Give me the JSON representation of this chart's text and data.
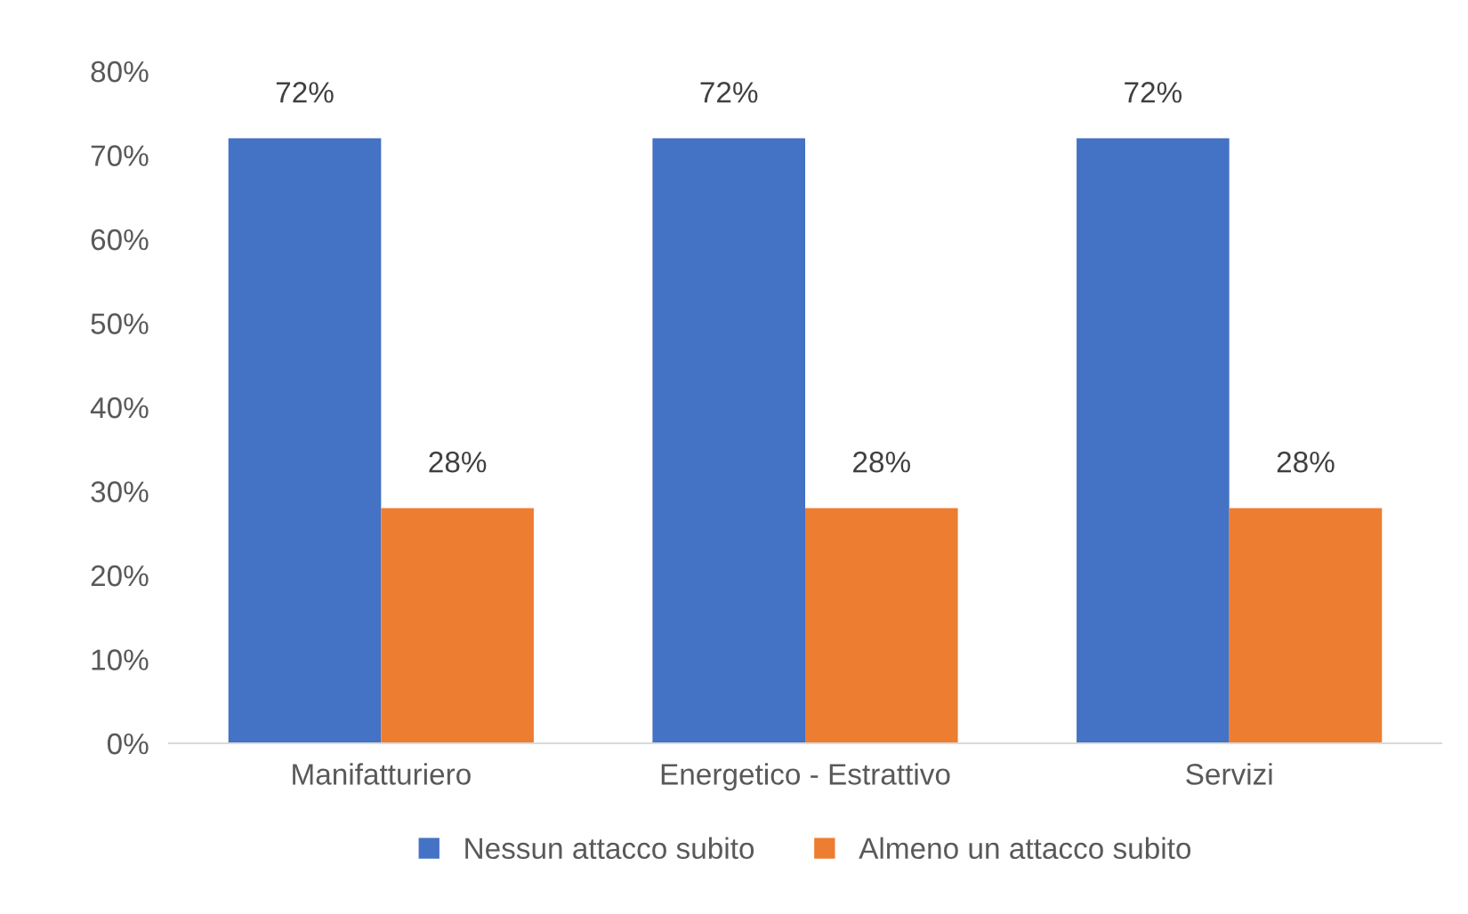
{
  "chart_data": {
    "type": "bar",
    "categories": [
      "Manifatturiero",
      "Energetico - Estrattivo",
      "Servizi"
    ],
    "series": [
      {
        "name": "Nessun attacco subito",
        "color": "#4472c4",
        "values": [
          72,
          72,
          72
        ],
        "value_labels": [
          "72%",
          "72%",
          "72%"
        ]
      },
      {
        "name": "Almeno un attacco subito",
        "color": "#ed7d31",
        "values": [
          28,
          28,
          28
        ],
        "value_labels": [
          "28%",
          "28%",
          "28%"
        ]
      }
    ],
    "ylim": [
      0,
      80
    ],
    "yticks": [
      {
        "value": 0,
        "label": "0%"
      },
      {
        "value": 10,
        "label": "10%"
      },
      {
        "value": 20,
        "label": "20%"
      },
      {
        "value": 30,
        "label": "30%"
      },
      {
        "value": 40,
        "label": "40%"
      },
      {
        "value": 50,
        "label": "50%"
      },
      {
        "value": 60,
        "label": "60%"
      },
      {
        "value": 70,
        "label": "70%"
      },
      {
        "value": 80,
        "label": "80%"
      }
    ],
    "grid": false,
    "legend": "bottom"
  }
}
